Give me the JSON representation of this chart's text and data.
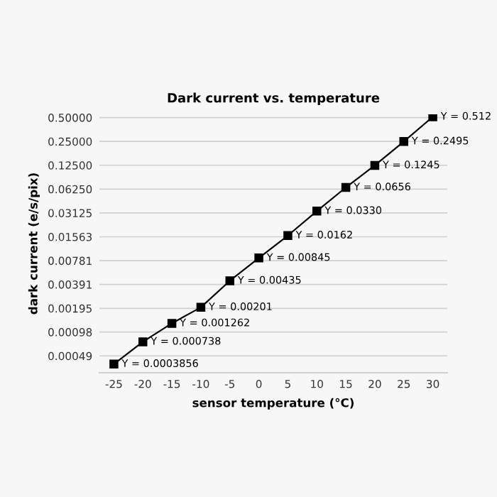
{
  "chart_data": {
    "type": "line",
    "title": "Dark current vs. temperature",
    "xlabel": "sensor temperature (°C)",
    "ylabel": "dark current (e/s/pix)",
    "x": [
      -25,
      -20,
      -15,
      -10,
      -5,
      0,
      5,
      10,
      15,
      20,
      25,
      30
    ],
    "series": [
      {
        "color": "#000000",
        "values": [
          0.0003856,
          0.000738,
          0.001262,
          0.00201,
          0.00435,
          0.00845,
          0.0162,
          0.033,
          0.0656,
          0.1245,
          0.2495,
          0.512
        ],
        "value_labels": [
          "Y = 0.0003856",
          "Y = 0.000738",
          "Y = 0.001262",
          "Y = 0.00201",
          "Y = 0.00435",
          "Y = 0.00845",
          "Y = 0.0162",
          "Y = 0.0330",
          "Y = 0.0656",
          "Y = 0.1245",
          "Y = 0.2495",
          "Y = 0.512"
        ]
      }
    ],
    "log": "y",
    "xlim": [
      -27.5,
      32.5
    ],
    "xticks": [
      -25,
      -20,
      -15,
      -10,
      -5,
      0,
      5,
      10,
      15,
      20,
      25,
      30
    ],
    "ylim": [
      0.0003,
      0.55
    ],
    "yticks": [
      {
        "value": 0.00049,
        "label": "0.00049"
      },
      {
        "value": 0.00098,
        "label": "0.00098"
      },
      {
        "value": 0.00195,
        "label": "0.00195"
      },
      {
        "value": 0.00391,
        "label": "0.00391"
      },
      {
        "value": 0.00781,
        "label": "0.00781"
      },
      {
        "value": 0.01563,
        "label": "0.01563"
      },
      {
        "value": 0.03125,
        "label": "0.03125"
      },
      {
        "value": 0.0625,
        "label": "0.06250"
      },
      {
        "value": 0.125,
        "label": "0.12500"
      },
      {
        "value": 0.25,
        "label": "0.25000"
      },
      {
        "value": 0.5,
        "label": "0.50000"
      }
    ],
    "grid": "y",
    "marker": "square",
    "line_style": "solid"
  }
}
